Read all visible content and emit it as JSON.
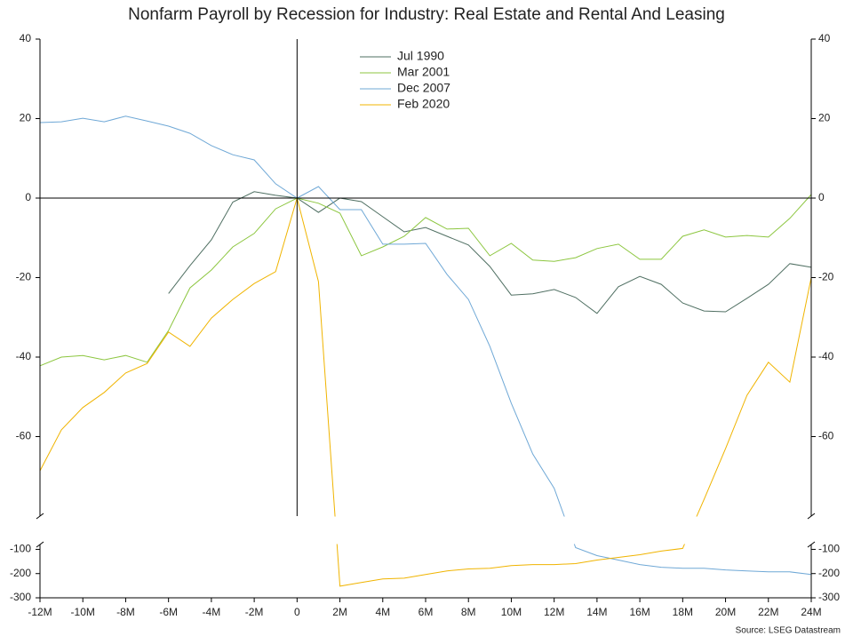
{
  "chart_data": {
    "type": "line",
    "title": "Nonfarm Payroll by Recession for Industry: Real Estate and Rental And Leasing",
    "source": "Source: LSEG Datastream",
    "x": [
      -12,
      -11,
      -10,
      -9,
      -8,
      -7,
      -6,
      -5,
      -4,
      -3,
      -2,
      -1,
      0,
      1,
      2,
      3,
      4,
      5,
      6,
      7,
      8,
      9,
      10,
      11,
      12,
      13,
      14,
      15,
      16,
      17,
      18,
      19,
      20,
      21,
      22,
      23,
      24
    ],
    "xlim": [
      -12,
      24
    ],
    "xticks": [
      {
        "value": -12,
        "label": "-12M"
      },
      {
        "value": -10,
        "label": "-10M"
      },
      {
        "value": -8,
        "label": "-8M"
      },
      {
        "value": -6,
        "label": "-6M"
      },
      {
        "value": -4,
        "label": "-4M"
      },
      {
        "value": -2,
        "label": "-2M"
      },
      0,
      {
        "value": 2,
        "label": "2M"
      },
      {
        "value": 4,
        "label": "4M"
      },
      {
        "value": 6,
        "label": "6M"
      },
      {
        "value": 8,
        "label": "8M"
      },
      {
        "value": 10,
        "label": "10M"
      },
      {
        "value": 12,
        "label": "12M"
      },
      {
        "value": 14,
        "label": "14M"
      },
      {
        "value": 16,
        "label": "16M"
      },
      {
        "value": 18,
        "label": "18M"
      },
      {
        "value": 20,
        "label": "20M"
      },
      {
        "value": 22,
        "label": "22M"
      },
      {
        "value": 24,
        "label": "24M"
      }
    ],
    "panels": [
      {
        "ylim": [
          -80,
          40
        ],
        "yticks": [
          -60,
          -40,
          -20,
          0,
          20,
          40
        ]
      },
      {
        "ylim": [
          -300,
          -80
        ],
        "yticks": [
          -300,
          -200,
          -100
        ]
      }
    ],
    "legend": "top-center",
    "series": [
      {
        "name": "Jul 1990",
        "color": "#4f6f62",
        "values": [
          null,
          null,
          null,
          null,
          null,
          null,
          -24,
          -17,
          -10.5,
          -1,
          1.6,
          0.7,
          0,
          -3.6,
          0,
          -0.9,
          -4.7,
          -8.5,
          -7.4,
          -9.6,
          -11.8,
          -17.2,
          -24.4,
          -24.1,
          -23,
          -25,
          -29,
          -22.3,
          -19.7,
          -21.7,
          -26.4,
          -28.4,
          -28.6,
          -25.2,
          -21.7,
          -16.5,
          -17.4
        ]
      },
      {
        "name": "Mar 2001",
        "color": "#8cc63f",
        "values": [
          -42.2,
          -40,
          -39.6,
          -40.7,
          -39.6,
          -41.3,
          -33.3,
          -22.6,
          -18.1,
          -12.3,
          -8.9,
          -2.7,
          0,
          -1.3,
          -3.8,
          -14.5,
          -12.3,
          -9.6,
          -4.9,
          -7.8,
          -7.6,
          -14.5,
          -11.4,
          -15.6,
          -15.9,
          -15,
          -12.7,
          -11.6,
          -15.4,
          -15.4,
          -9.6,
          -8,
          -9.8,
          -9.4,
          -9.8,
          -5.1,
          0.9
        ]
      },
      {
        "name": "Dec 2007",
        "color": "#6fa8d6",
        "values": [
          19,
          19.2,
          20.1,
          19.2,
          20.6,
          19.4,
          18.1,
          16.3,
          13.2,
          10.9,
          9.6,
          3.6,
          0,
          2.9,
          -2.9,
          -2.9,
          -11.6,
          -11.6,
          -11.4,
          -19.2,
          -25.5,
          -37.3,
          -51.6,
          -64.4,
          -73,
          -93,
          -126,
          -144,
          -163,
          -174,
          -178,
          -178,
          -185,
          -189,
          -193,
          -193,
          -204
        ]
      },
      {
        "name": "Feb 2020",
        "color": "#f0b400",
        "values": [
          -68.6,
          -58.3,
          -52.7,
          -48.9,
          -44,
          -41.6,
          -33.7,
          -37.3,
          -30.2,
          -25.5,
          -21.5,
          -18.5,
          0,
          -21,
          -252,
          -237,
          -222,
          -219,
          -204,
          -189,
          -181,
          -178,
          -167,
          -163,
          -163,
          -159,
          -144,
          -133,
          -122,
          -107,
          -96,
          -75.8,
          -63,
          -49.6,
          -41.3,
          -46.3,
          -20
        ]
      }
    ]
  }
}
